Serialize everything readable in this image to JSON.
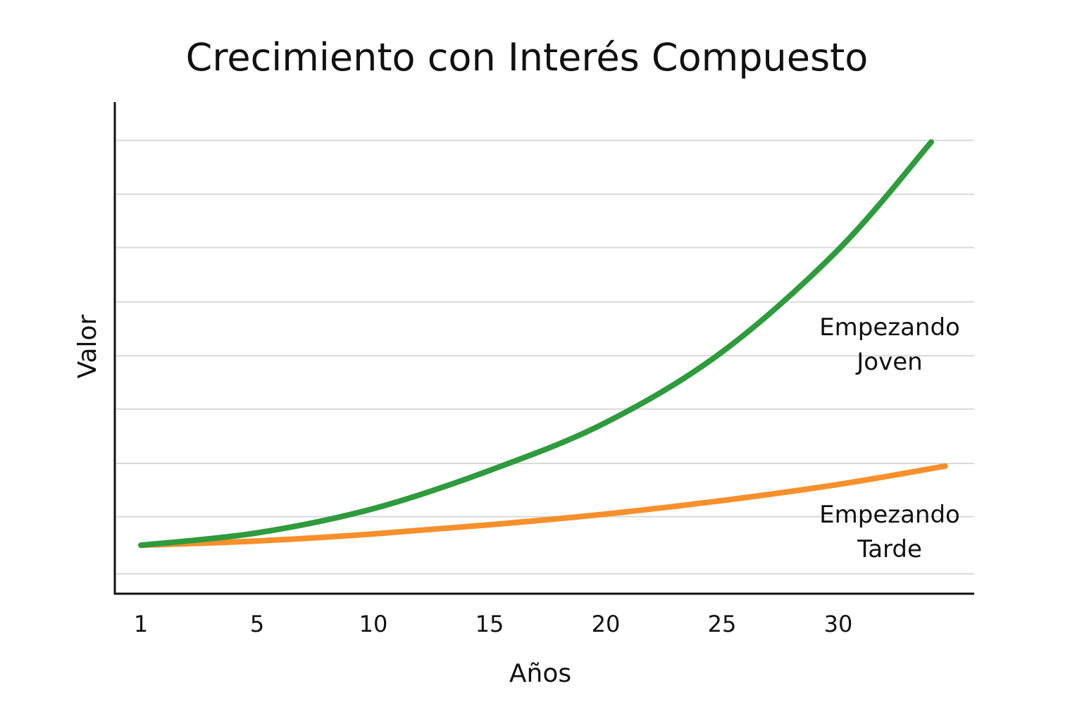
{
  "chart_data": {
    "type": "line",
    "title": "Crecimiento con Interés Compuesto",
    "xlabel": "Años",
    "ylabel": "Valor",
    "x_ticks": [
      1,
      5,
      10,
      15,
      20,
      25,
      30
    ],
    "ylim": [
      0,
      9
    ],
    "grid_values": [
      0.37,
      1.43,
      2.42,
      3.43,
      4.42,
      5.42,
      6.43,
      7.42,
      8.42
    ],
    "grid": true,
    "series": [
      {
        "name": "Empezando Joven",
        "label_lines": [
          "Empezando",
          "Joven"
        ],
        "color": "#2e9b3c",
        "x": [
          1,
          5,
          10,
          15,
          20,
          25,
          30,
          34
        ],
        "y": [
          0.9,
          1.13,
          1.58,
          2.29,
          3.18,
          4.49,
          6.39,
          8.39
        ]
      },
      {
        "name": "Empezando Tarde",
        "label_lines": [
          "Empezando",
          "Tarde"
        ],
        "color": "#f7902a",
        "x": [
          1,
          5,
          10,
          15,
          20,
          25,
          30,
          34.6
        ],
        "y": [
          0.9,
          0.98,
          1.11,
          1.28,
          1.48,
          1.73,
          2.03,
          2.37
        ]
      }
    ]
  }
}
